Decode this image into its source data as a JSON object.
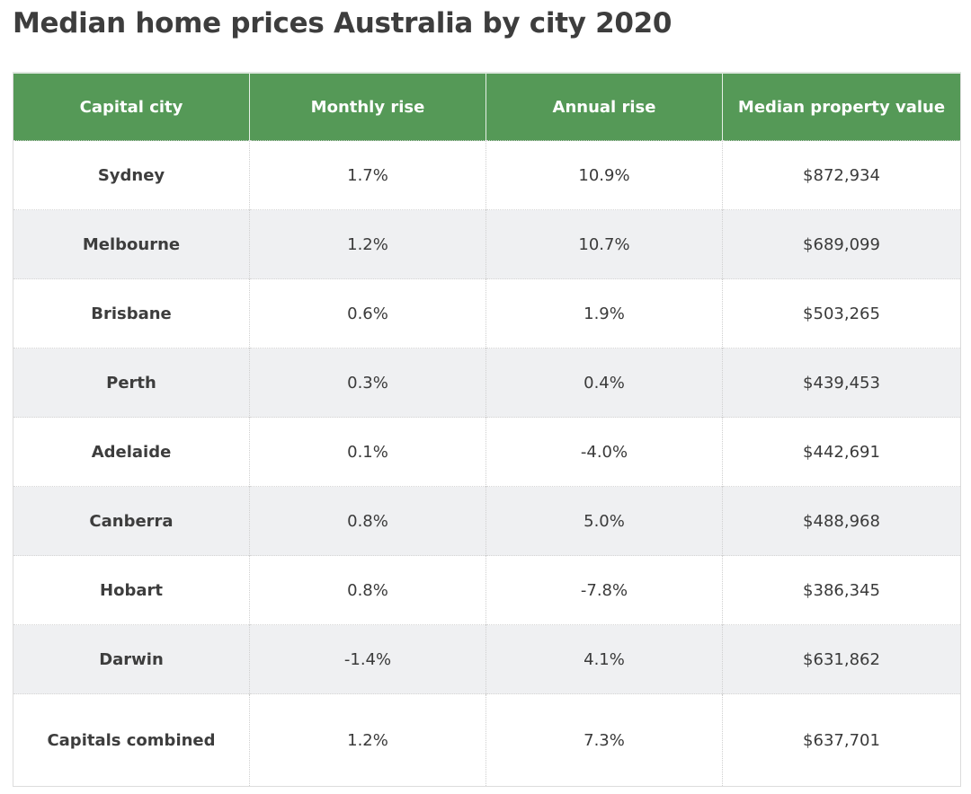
{
  "title": "Median home prices Australia by city 2020",
  "colors": {
    "header_bg": "#559957",
    "header_text": "#ffffff",
    "stripe": "#eff0f2"
  },
  "table": {
    "headers": [
      "Capital city",
      "Monthly rise",
      "Annual rise",
      "Median property value"
    ],
    "rows": [
      {
        "city": "Sydney",
        "monthly": "1.7%",
        "annual": "10.9%",
        "value": "$872,934"
      },
      {
        "city": "Melbourne",
        "monthly": "1.2%",
        "annual": "10.7%",
        "value": "$689,099"
      },
      {
        "city": "Brisbane",
        "monthly": "0.6%",
        "annual": "1.9%",
        "value": "$503,265"
      },
      {
        "city": "Perth",
        "monthly": "0.3%",
        "annual": "0.4%",
        "value": "$439,453"
      },
      {
        "city": "Adelaide",
        "monthly": "0.1%",
        "annual": "-4.0%",
        "value": "$442,691"
      },
      {
        "city": "Canberra",
        "monthly": "0.8%",
        "annual": "5.0%",
        "value": "$488,968"
      },
      {
        "city": "Hobart",
        "monthly": "0.8%",
        "annual": "-7.8%",
        "value": "$386,345"
      },
      {
        "city": "Darwin",
        "monthly": "-1.4%",
        "annual": "4.1%",
        "value": "$631,862"
      },
      {
        "city": "Capitals combined",
        "monthly": "1.2%",
        "annual": "7.3%",
        "value": "$637,701"
      }
    ]
  }
}
